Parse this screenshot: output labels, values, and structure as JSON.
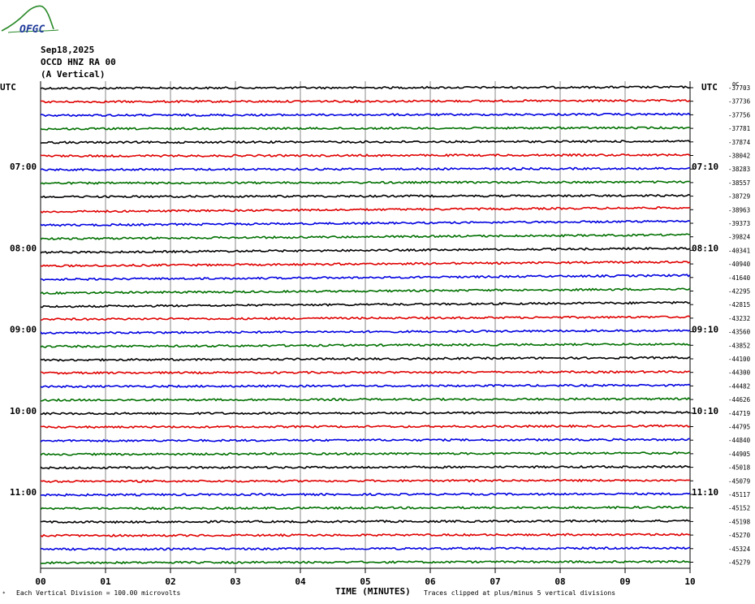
{
  "header": {
    "logo_text": "OFGC",
    "date": "Sep18,2025",
    "station": "OCCD HNZ RA 00",
    "component": "(A Vertical)"
  },
  "chart_data": {
    "type": "line",
    "title": "Sep18,2025",
    "left_axis_label": "UTC",
    "right_axis_label": "UTC",
    "left_hour_labels": [
      "07:00",
      "08:00",
      "09:00",
      "10:00",
      "11:00"
    ],
    "right_hour_labels": [
      "07:10",
      "08:10",
      "09:10",
      "10:10",
      "11:10"
    ],
    "xlabel": "TIME (MINUTES)",
    "x_ticks": [
      "00",
      "01",
      "02",
      "03",
      "04",
      "05",
      "06",
      "07",
      "08",
      "09",
      "10"
    ],
    "xlim": [
      0,
      10
    ],
    "grid_x": true,
    "trace_colors": [
      "#000000",
      "#e00000",
      "#0000e0",
      "#007000"
    ],
    "trace_count": 36,
    "top_right_marker": "0C",
    "trace_offsets": [
      -37703,
      -37736,
      -37756,
      -37781,
      -37874,
      -38042,
      -38283,
      -38557,
      -38729,
      -38963,
      -39373,
      -39824,
      -40341,
      -40940,
      -41640,
      -42295,
      -42815,
      -43232,
      -43560,
      -43852,
      -44100,
      -44300,
      -44482,
      -44626,
      -44719,
      -44795,
      -44840,
      -44905,
      -45018,
      -45079,
      -45117,
      -45152,
      -45198,
      -45270,
      -45324,
      -45279
    ],
    "footer_left": "Each Vertical Division =  100.00 microvolts",
    "footer_right": "Traces clipped at plus/minus 5 vertical divisions"
  }
}
